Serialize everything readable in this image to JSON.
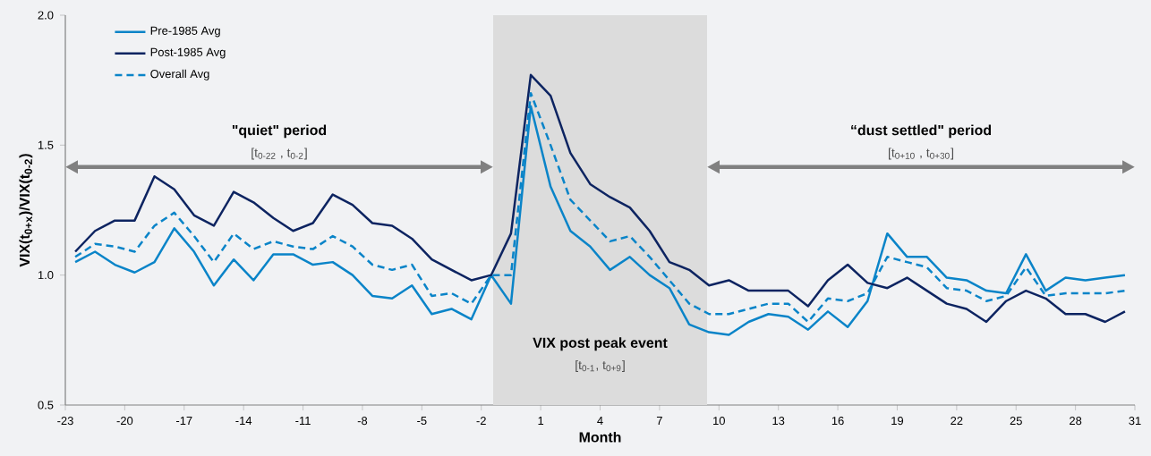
{
  "chart_data": {
    "type": "line",
    "xlabel": "Month",
    "ylabel": "VIX(t$_{0+x}$)/VIX(t$_{0-2}$)",
    "x": [
      -22.5,
      -21.5,
      -20.5,
      -19.5,
      -18.5,
      -17.5,
      -16.5,
      -15.5,
      -14.5,
      -13.5,
      -12.5,
      -11.5,
      -10.5,
      -9.5,
      -8.5,
      -7.5,
      -6.5,
      -5.5,
      -4.5,
      -3.5,
      -2.5,
      -1.5,
      -0.5,
      0.5,
      1.5,
      2.5,
      3.5,
      4.5,
      5.5,
      6.5,
      7.5,
      8.5,
      9.5,
      10.5,
      11.5,
      12.5,
      13.5,
      14.5,
      15.5,
      16.5,
      17.5,
      18.5,
      19.5,
      20.5,
      21.5,
      22.5,
      23.5,
      24.5,
      25.5,
      26.5,
      27.5,
      28.5,
      29.5,
      30.5
    ],
    "series": [
      {
        "name": "Pre-1985 Avg",
        "color": "#0a84c8",
        "line_style": "solid",
        "values": [
          1.05,
          1.09,
          1.04,
          1.01,
          1.05,
          1.18,
          1.09,
          0.96,
          1.06,
          0.98,
          1.08,
          1.08,
          1.04,
          1.05,
          1.0,
          0.92,
          0.91,
          0.96,
          0.85,
          0.87,
          0.83,
          1.0,
          0.89,
          1.65,
          1.34,
          1.17,
          1.11,
          1.02,
          1.07,
          1.0,
          0.95,
          0.81,
          0.78,
          0.77,
          0.82,
          0.85,
          0.84,
          0.79,
          0.86,
          0.8,
          0.9,
          1.16,
          1.07,
          1.07,
          0.99,
          0.98,
          0.94,
          0.93,
          1.08,
          0.94,
          0.99,
          0.98,
          0.99,
          1.0
        ]
      },
      {
        "name": "Post-1985 Avg",
        "color": "#0d2461",
        "line_style": "solid",
        "values": [
          1.09,
          1.17,
          1.21,
          1.21,
          1.38,
          1.33,
          1.23,
          1.19,
          1.32,
          1.28,
          1.22,
          1.17,
          1.2,
          1.31,
          1.27,
          1.2,
          1.19,
          1.14,
          1.06,
          1.02,
          0.98,
          1.0,
          1.16,
          1.77,
          1.69,
          1.47,
          1.35,
          1.3,
          1.26,
          1.17,
          1.05,
          1.02,
          0.96,
          0.98,
          0.94,
          0.94,
          0.94,
          0.88,
          0.98,
          1.04,
          0.97,
          0.95,
          0.99,
          0.94,
          0.89,
          0.87,
          0.82,
          0.9,
          0.94,
          0.91,
          0.85,
          0.85,
          0.82,
          0.86
        ]
      },
      {
        "name": "Overall Avg",
        "color": "#0a84c8",
        "line_style": "dashed",
        "values": [
          1.07,
          1.12,
          1.11,
          1.09,
          1.19,
          1.24,
          1.15,
          1.05,
          1.16,
          1.1,
          1.13,
          1.11,
          1.1,
          1.15,
          1.11,
          1.04,
          1.02,
          1.04,
          0.92,
          0.93,
          0.89,
          1.0,
          1.0,
          1.7,
          1.5,
          1.29,
          1.21,
          1.13,
          1.15,
          1.07,
          0.98,
          0.89,
          0.85,
          0.85,
          0.87,
          0.89,
          0.89,
          0.82,
          0.91,
          0.9,
          0.93,
          1.07,
          1.05,
          1.03,
          0.95,
          0.94,
          0.9,
          0.92,
          1.03,
          0.92,
          0.93,
          0.93,
          0.93,
          0.94
        ]
      }
    ],
    "xlim": [
      -23,
      31
    ],
    "ylim": [
      0.5,
      2.0
    ],
    "xticks": [
      -23,
      -20,
      -17,
      -14,
      -11,
      -8,
      -5,
      -2,
      1,
      4,
      7,
      10,
      13,
      16,
      19,
      22,
      25,
      28,
      31
    ],
    "yticks": [
      {
        "value": 0.5,
        "label": "0.5"
      },
      {
        "value": 1.0,
        "label": "1.0"
      },
      {
        "value": 1.5,
        "label": "1.5"
      },
      {
        "value": 2.0,
        "label": "2.0"
      }
    ],
    "bands": [
      {
        "axis": "x",
        "from": -1.4,
        "to": 9.4,
        "label": "VIX post peak event",
        "color": "#dcdcdc"
      }
    ],
    "annotations": [
      "\"quiet\" period",
      "[t$_{0-22}$ , t$_{0-2}$]",
      "“dust settled\" period",
      "[t$_{0+10}$ , t$_{0+30}$]",
      "[t$_{0-1}$, t$_{0+9}$]"
    ],
    "legend": "top left",
    "grid": false,
    "marker": "none"
  }
}
